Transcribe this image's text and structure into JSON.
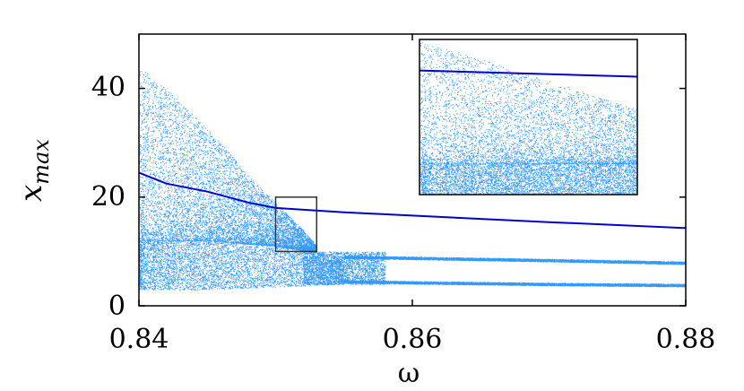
{
  "chart_data": {
    "type": "scatter",
    "title": "",
    "xlabel": "ω",
    "ylabel": {
      "main": "x",
      "subscript": "max"
    },
    "xlim": [
      0.84,
      0.88
    ],
    "ylim": [
      0,
      50
    ],
    "xticks": [
      0.84,
      0.86,
      0.88
    ],
    "xtick_labels": [
      "0.84",
      "0.86",
      "0.88"
    ],
    "yticks": [
      0,
      20,
      40
    ],
    "ytick_labels": [
      "0",
      "20",
      "40"
    ],
    "grid": false,
    "legend": "none",
    "series": [
      {
        "kind": "scatter-cloud",
        "color": "#3399ff",
        "upper_envelope": {
          "x": [
            0.84,
            0.842,
            0.844,
            0.846,
            0.848,
            0.85,
            0.852,
            0.853
          ],
          "y": [
            44,
            40,
            35,
            30,
            24,
            19,
            14,
            11
          ]
        },
        "dense_band": {
          "x": [
            0.84,
            0.845,
            0.85,
            0.855
          ],
          "y_low": [
            3,
            3,
            3.5,
            4
          ],
          "y_high": [
            12,
            12,
            11,
            9
          ]
        },
        "branches": [
          {
            "x": [
              0.855,
              0.86,
              0.87,
              0.88
            ],
            "y": [
              9,
              8.8,
              8.4,
              7.9
            ]
          },
          {
            "x": [
              0.855,
              0.86,
              0.87,
              0.88
            ],
            "y": [
              4.5,
              4.3,
              4.0,
              3.8
            ]
          }
        ]
      },
      {
        "kind": "line",
        "color": "#0000cc",
        "x": [
          0.84,
          0.842,
          0.845,
          0.848,
          0.85,
          0.855,
          0.86,
          0.87,
          0.88
        ],
        "y": [
          24.5,
          22.5,
          21,
          19,
          18,
          17.2,
          16.6,
          15.4,
          14.3
        ]
      }
    ],
    "zoom_box": {
      "x": [
        0.85,
        0.853
      ],
      "y": [
        10,
        20
      ]
    },
    "inset": {
      "xlim": [
        0.85,
        0.853
      ],
      "ylim": [
        10,
        20
      ],
      "dense_floor": 12,
      "line": {
        "x": [
          0.85,
          0.853
        ],
        "y": [
          18,
          17.6
        ]
      }
    }
  },
  "colors": {
    "scatter": "#3399ff",
    "line": "#0000cc",
    "frame": "#000000",
    "zoom_box": "#333333"
  }
}
